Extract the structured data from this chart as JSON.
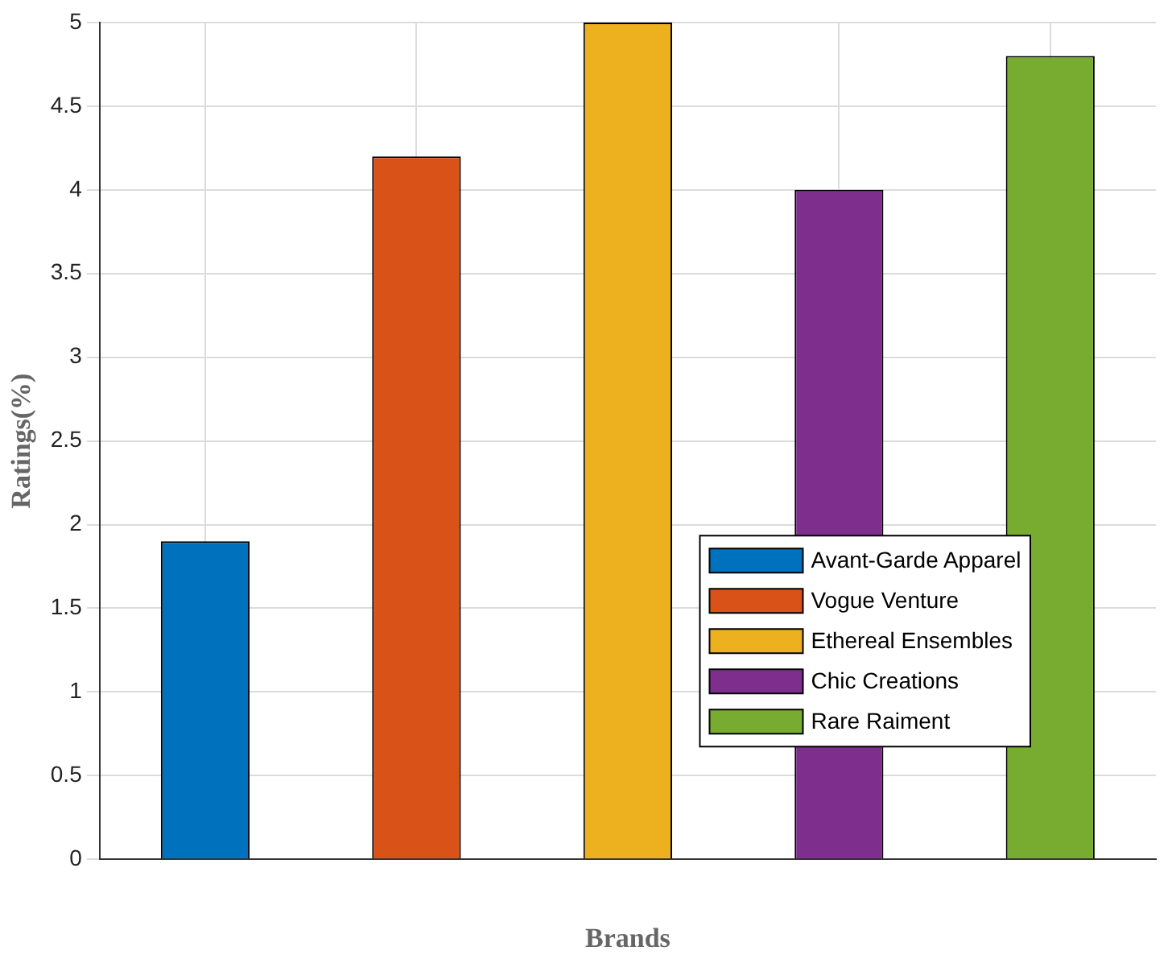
{
  "chart_data": {
    "type": "bar",
    "xlabel": "Brands",
    "ylabel": "Ratings(%)",
    "categories": [
      null,
      null,
      null,
      null,
      null
    ],
    "series": [
      {
        "name": "Avant-Garde Apparel",
        "color": "#0072bd",
        "values": [
          1.9,
          null,
          null,
          null,
          null
        ]
      },
      {
        "name": "Vogue Venture",
        "color": "#d95319",
        "values": [
          null,
          4.2,
          null,
          null,
          null
        ]
      },
      {
        "name": "Ethereal Ensembles",
        "color": "#edb120",
        "values": [
          null,
          null,
          5,
          null,
          null
        ]
      },
      {
        "name": "Chic Creations",
        "color": "#7e2f8e",
        "values": [
          null,
          null,
          null,
          4,
          null
        ]
      },
      {
        "name": "Rare Raiment",
        "color": "#77ac30",
        "values": [
          null,
          null,
          null,
          null,
          4.8
        ]
      }
    ],
    "ylim": [
      0,
      5
    ],
    "yticks": [
      0,
      0.5,
      1,
      1.5,
      2,
      2.5,
      3,
      3.5,
      4,
      4.5,
      5
    ],
    "grid": true,
    "legend": "bottom right",
    "tick_labels": "y"
  }
}
